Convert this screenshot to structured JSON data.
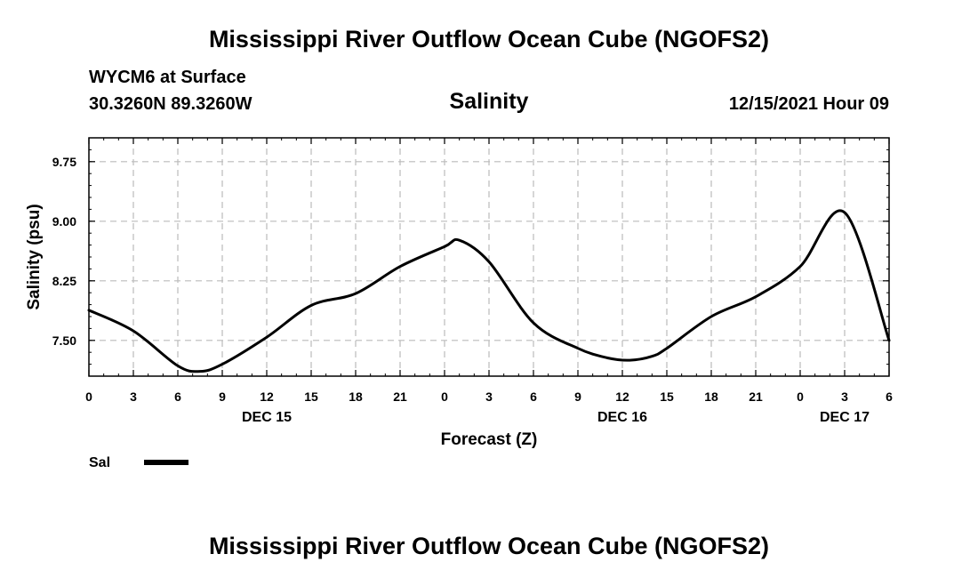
{
  "header": {
    "title": "Mississippi River Outflow Ocean Cube (NGOFS2)",
    "station": "WYCM6 at Surface",
    "coords": "30.3260N  89.3260W",
    "datetime": "12/15/2021 Hour 09"
  },
  "footer": {
    "title": "Mississippi River Outflow Ocean Cube (NGOFS2)"
  },
  "colors": {
    "line": "#000000",
    "grid": "#bbbbbb"
  },
  "chart_data": {
    "type": "line",
    "title": "Salinity",
    "xlabel": "Forecast (Z)",
    "ylabel": "Salinity (psu)",
    "xlim": [
      0,
      54
    ],
    "ylim": [
      7.05,
      10.05
    ],
    "grid": true,
    "x_ticks": [
      0,
      3,
      6,
      9,
      12,
      15,
      18,
      21,
      24,
      27,
      30,
      33,
      36,
      39,
      42,
      45,
      48,
      51,
      54
    ],
    "x_tick_labels": [
      "0",
      "3",
      "6",
      "9",
      "12",
      "15",
      "18",
      "21",
      "0",
      "3",
      "6",
      "9",
      "12",
      "15",
      "18",
      "21",
      "0",
      "3",
      "6"
    ],
    "y_ticks": [
      7.5,
      8.25,
      9.0,
      9.75
    ],
    "y_tick_labels": [
      "7.50",
      "8.25",
      "9.00",
      "9.75"
    ],
    "day_labels": [
      {
        "x": 12,
        "label": "DEC 15"
      },
      {
        "x": 36,
        "label": "DEC 16"
      },
      {
        "x": 51,
        "label": "DEC 17"
      }
    ],
    "legend_position": "bottom-left",
    "series": [
      {
        "name": "Sal",
        "x": [
          0,
          3,
          6,
          7.5,
          9,
          12,
          15,
          18,
          21,
          24,
          25,
          27,
          30,
          33,
          35,
          36.5,
          38,
          39,
          42,
          45,
          48,
          51,
          54
        ],
        "values": [
          7.88,
          7.62,
          7.18,
          7.11,
          7.2,
          7.54,
          7.94,
          8.09,
          8.43,
          8.68,
          8.76,
          8.49,
          7.72,
          7.4,
          7.28,
          7.25,
          7.3,
          7.4,
          7.8,
          8.05,
          8.43,
          9.11,
          7.5
        ]
      }
    ]
  }
}
